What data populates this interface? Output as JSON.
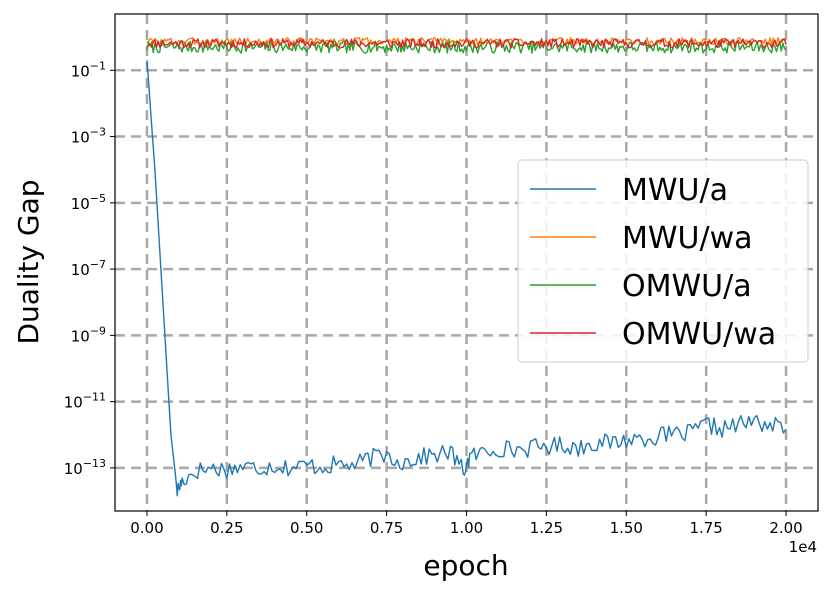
{
  "chart_data": {
    "type": "line",
    "xlabel": "epoch",
    "ylabel": "Duality Gap",
    "x_offset_text": "1e4",
    "xlim": [
      -1000,
      21000
    ],
    "ylim": [
      5e-15,
      5
    ],
    "yscale": "log",
    "grid": true,
    "legend_position": "center-right",
    "x_ticks": [
      {
        "value": 0,
        "label": "0.00"
      },
      {
        "value": 2500,
        "label": "0.25"
      },
      {
        "value": 5000,
        "label": "0.50"
      },
      {
        "value": 7500,
        "label": "0.75"
      },
      {
        "value": 10000,
        "label": "1.00"
      },
      {
        "value": 12500,
        "label": "1.25"
      },
      {
        "value": 15000,
        "label": "1.50"
      },
      {
        "value": 17500,
        "label": "1.75"
      },
      {
        "value": 20000,
        "label": "2.00"
      }
    ],
    "y_ticks": [
      {
        "value": 0.1,
        "base": "10",
        "exp": "−1"
      },
      {
        "value": 0.001,
        "base": "10",
        "exp": "−3"
      },
      {
        "value": 1e-05,
        "base": "10",
        "exp": "−5"
      },
      {
        "value": 1e-07,
        "base": "10",
        "exp": "−7"
      },
      {
        "value": 1e-09,
        "base": "10",
        "exp": "−9"
      },
      {
        "value": 1e-11,
        "base": "10",
        "exp": "−11"
      },
      {
        "value": 1e-13,
        "base": "10",
        "exp": "−13"
      }
    ],
    "series": [
      {
        "name": "MWU/a",
        "color": "#1f77b4",
        "x": [
          0,
          250,
          500,
          750,
          950,
          1100,
          1500,
          2000,
          2500,
          3000,
          3500,
          4000,
          4500,
          5000,
          5500,
          6000,
          6500,
          7000,
          7500,
          8000,
          8500,
          9000,
          9500,
          9900,
          10100,
          10500,
          11000,
          11500,
          12000,
          12500,
          13000,
          13500,
          14000,
          14500,
          15000,
          15500,
          16000,
          16500,
          17000,
          17500,
          18000,
          18500,
          19000,
          19500,
          20000
        ],
        "y": [
          0.2,
          0.0001,
          1e-08,
          1e-12,
          2e-14,
          4e-14,
          8e-14,
          1e-13,
          9e-14,
          1.1e-13,
          1e-13,
          1.2e-13,
          1e-13,
          1.2e-13,
          1.1e-13,
          1.3e-13,
          1.2e-13,
          2e-13,
          2.5e-13,
          1.5e-13,
          2e-13,
          2.5e-13,
          3e-13,
          8e-14,
          2e-13,
          3e-13,
          4e-13,
          3.5e-13,
          4e-13,
          4.5e-13,
          5e-13,
          4e-13,
          6e-13,
          5.5e-13,
          7e-13,
          8e-13,
          9e-13,
          1e-12,
          1.1e-12,
          2e-12,
          1.5e-12,
          2e-12,
          2.5e-12,
          2e-12,
          1.5e-12
        ]
      },
      {
        "name": "MWU/wa",
        "color": "#ff7f0e",
        "center": 0.75,
        "amplitude_decades": 0.11,
        "seed": 3
      },
      {
        "name": "OMWU/a",
        "color": "#2ca02c",
        "center": 0.5,
        "amplitude_decades": 0.18,
        "seed": 7
      },
      {
        "name": "OMWU/wa",
        "color": "#d62728",
        "center": 0.65,
        "amplitude_decades": 0.14,
        "seed": 11
      }
    ]
  }
}
